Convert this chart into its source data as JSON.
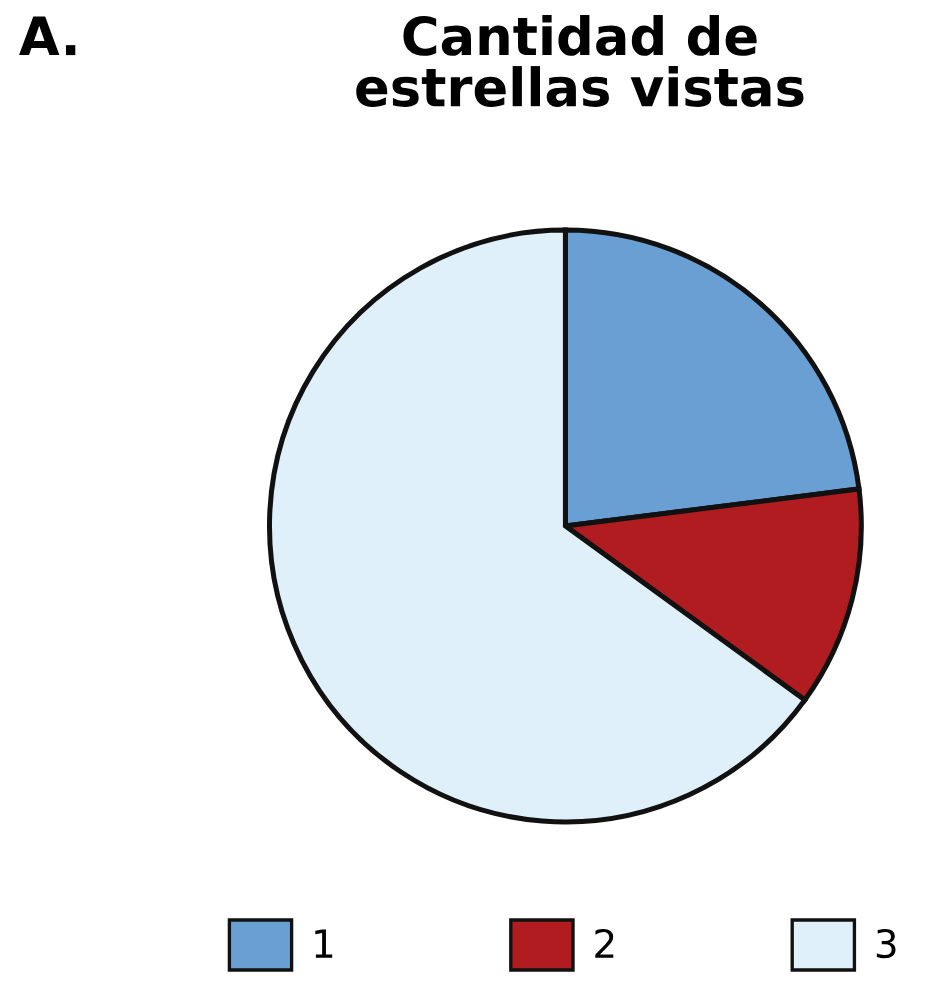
{
  "chart_data": {
    "type": "pie",
    "title": "Cantidad de\nestrellas vistas",
    "categories": [
      "1",
      "2",
      "3"
    ],
    "values": [
      23,
      12,
      65
    ],
    "colors": [
      "#6a9fd4",
      "#b01c20",
      "#dff0fa"
    ],
    "legend": "bottom",
    "annotations": [
      "A."
    ]
  }
}
